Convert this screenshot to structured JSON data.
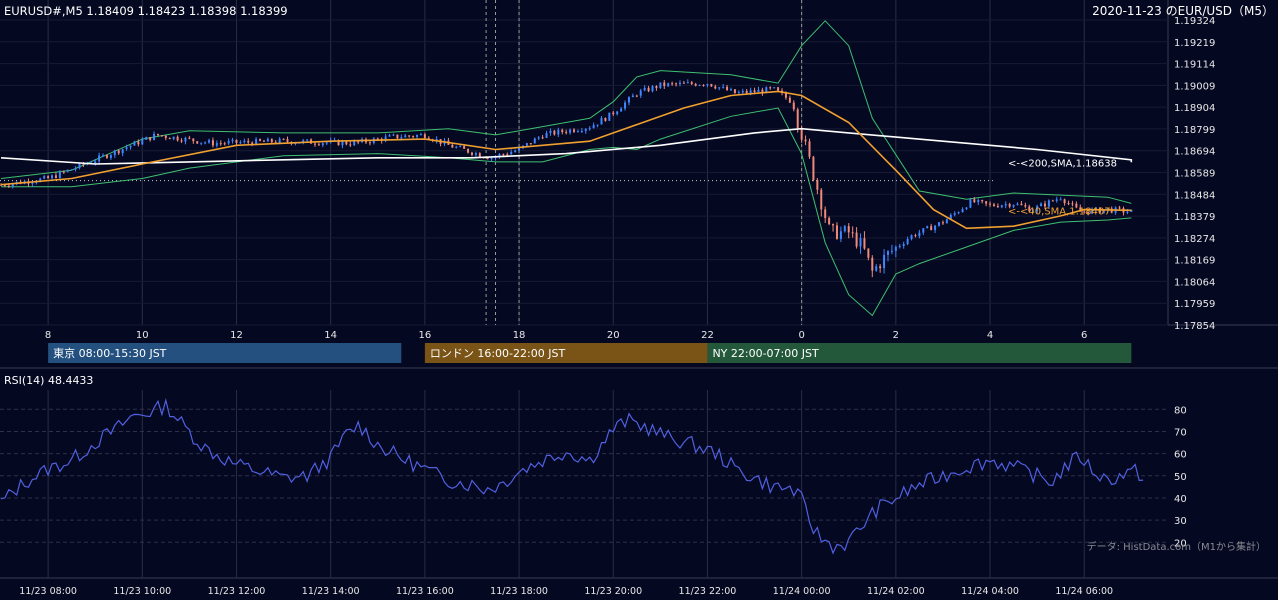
{
  "header": {
    "symbol_ohlc": "EURUSD#,M5 1.18409 1.18423 1.18398 1.18399",
    "date_title": "2020-11-23 のEUR/USD（M5）"
  },
  "chart_data": [
    {
      "type": "candlestick",
      "name": "price",
      "y_ticks": [
        "1.19324",
        "1.19219",
        "1.19114",
        "1.19009",
        "1.18904",
        "1.18799",
        "1.18694",
        "1.18589",
        "1.18484",
        "1.18379",
        "1.18274",
        "1.18169",
        "1.18064",
        "1.17959",
        "1.17854"
      ],
      "ylim": [
        1.17854,
        1.19324
      ],
      "x_ticks": [
        "8",
        "10",
        "12",
        "14",
        "16",
        "18",
        "20",
        "22",
        "0",
        "2",
        "4",
        "6"
      ],
      "x_tick_hours": [
        8,
        10,
        12,
        14,
        16,
        18,
        20,
        22,
        24,
        26,
        28,
        30
      ],
      "xlim_hours": [
        7.0,
        31.8
      ],
      "price_path": [
        [
          7.0,
          1.1853
        ],
        [
          8.0,
          1.1856
        ],
        [
          9.0,
          1.1865
        ],
        [
          10.3,
          1.1877
        ],
        [
          11.5,
          1.1873
        ],
        [
          13.0,
          1.1874
        ],
        [
          14.5,
          1.1873
        ],
        [
          15.3,
          1.1876
        ],
        [
          16.0,
          1.1877
        ],
        [
          16.5,
          1.1872
        ],
        [
          17.4,
          1.1866
        ],
        [
          18.0,
          1.187
        ],
        [
          18.5,
          1.1877
        ],
        [
          19.5,
          1.1881
        ],
        [
          19.9,
          1.1886
        ],
        [
          20.5,
          1.1897
        ],
        [
          21.0,
          1.1901
        ],
        [
          22.0,
          1.1902
        ],
        [
          22.6,
          1.1897
        ],
        [
          23.4,
          1.1899
        ],
        [
          23.8,
          1.1893
        ],
        [
          24.2,
          1.1862
        ],
        [
          24.6,
          1.183
        ],
        [
          25.0,
          1.183
        ],
        [
          25.3,
          1.1823
        ],
        [
          25.5,
          1.1811
        ],
        [
          25.8,
          1.1819
        ],
        [
          26.3,
          1.1828
        ],
        [
          27.0,
          1.1835
        ],
        [
          27.6,
          1.1845
        ],
        [
          28.0,
          1.1843
        ],
        [
          28.5,
          1.1844
        ],
        [
          28.9,
          1.1841
        ],
        [
          29.5,
          1.1847
        ],
        [
          29.9,
          1.184
        ],
        [
          30.5,
          1.1841
        ],
        [
          31.0,
          1.184
        ]
      ],
      "series": [
        {
          "name": "<-<200,SMA,1.18638",
          "color": "#ffffff",
          "points": [
            [
              7.0,
              1.1866
            ],
            [
              9.0,
              1.1863
            ],
            [
              11.0,
              1.1864
            ],
            [
              13.0,
              1.1865
            ],
            [
              15.0,
              1.1866
            ],
            [
              17.0,
              1.1866
            ],
            [
              19.0,
              1.1868
            ],
            [
              21.0,
              1.1872
            ],
            [
              23.0,
              1.1878
            ],
            [
              24.0,
              1.188
            ],
            [
              25.0,
              1.1878
            ],
            [
              27.0,
              1.1874
            ],
            [
              29.0,
              1.187
            ],
            [
              31.0,
              1.1865
            ],
            [
              31.0,
              1.18638
            ]
          ]
        },
        {
          "name": "<-<40,SMA,1.18407",
          "color": "#f0a030",
          "points": [
            [
              7.0,
              1.1853
            ],
            [
              8.5,
              1.1856
            ],
            [
              10.0,
              1.1863
            ],
            [
              12.0,
              1.1872
            ],
            [
              14.0,
              1.1874
            ],
            [
              16.0,
              1.1875
            ],
            [
              17.5,
              1.187
            ],
            [
              18.5,
              1.1872
            ],
            [
              19.5,
              1.1874
            ],
            [
              20.5,
              1.1882
            ],
            [
              21.5,
              1.189
            ],
            [
              22.5,
              1.1896
            ],
            [
              23.5,
              1.1898
            ],
            [
              24.0,
              1.1896
            ],
            [
              25.0,
              1.1883
            ],
            [
              26.0,
              1.186
            ],
            [
              26.8,
              1.1841
            ],
            [
              27.5,
              1.1832
            ],
            [
              28.5,
              1.1833
            ],
            [
              29.5,
              1.1838
            ],
            [
              30.0,
              1.1841
            ],
            [
              31.0,
              1.18407
            ]
          ]
        }
      ],
      "bands": {
        "name": "Bollinger",
        "color": "#3ec070",
        "upper": [
          [
            7.0,
            1.1856
          ],
          [
            8.5,
            1.186
          ],
          [
            10.0,
            1.1875
          ],
          [
            11.0,
            1.1879
          ],
          [
            13.0,
            1.1878
          ],
          [
            15.0,
            1.1878
          ],
          [
            16.5,
            1.188
          ],
          [
            17.5,
            1.1877
          ],
          [
            18.5,
            1.1881
          ],
          [
            19.5,
            1.1885
          ],
          [
            20.0,
            1.1893
          ],
          [
            20.5,
            1.1905
          ],
          [
            21.0,
            1.1908
          ],
          [
            22.5,
            1.1906
          ],
          [
            23.5,
            1.1902
          ],
          [
            24.0,
            1.192
          ],
          [
            24.5,
            1.1932
          ],
          [
            25.0,
            1.192
          ],
          [
            25.5,
            1.1885
          ],
          [
            26.5,
            1.185
          ],
          [
            27.5,
            1.1846
          ],
          [
            28.5,
            1.1849
          ],
          [
            29.5,
            1.1848
          ],
          [
            30.5,
            1.1847
          ],
          [
            31.0,
            1.1844
          ]
        ],
        "lower": [
          [
            7.0,
            1.1852
          ],
          [
            8.5,
            1.1852
          ],
          [
            10.0,
            1.1856
          ],
          [
            11.0,
            1.1861
          ],
          [
            13.0,
            1.1867
          ],
          [
            15.0,
            1.1868
          ],
          [
            16.5,
            1.1866
          ],
          [
            17.5,
            1.1864
          ],
          [
            18.5,
            1.1864
          ],
          [
            19.5,
            1.187
          ],
          [
            20.0,
            1.1871
          ],
          [
            20.5,
            1.187
          ],
          [
            21.0,
            1.1875
          ],
          [
            22.5,
            1.1886
          ],
          [
            23.5,
            1.189
          ],
          [
            24.0,
            1.1868
          ],
          [
            24.5,
            1.1825
          ],
          [
            25.0,
            1.18
          ],
          [
            25.5,
            1.179
          ],
          [
            26.0,
            1.181
          ],
          [
            26.5,
            1.1815
          ],
          [
            27.5,
            1.1823
          ],
          [
            28.5,
            1.1831
          ],
          [
            29.5,
            1.1835
          ],
          [
            30.5,
            1.1836
          ],
          [
            31.0,
            1.1837
          ]
        ]
      },
      "reference_line": 1.1855,
      "vertical_markers_hours": [
        17.3,
        17.5,
        18.0,
        24.0
      ]
    },
    {
      "type": "line",
      "name": "RSI",
      "title": "RSI(14) 48.4433",
      "y_ticks": [
        "80",
        "70",
        "60",
        "50",
        "40",
        "30",
        "20"
      ],
      "ylim": [
        12,
        86
      ],
      "color": "#5060e0",
      "x_ticks": [
        "11/23 08:00",
        "11/23 10:00",
        "11/23 12:00",
        "11/23 14:00",
        "11/23 16:00",
        "11/23 18:00",
        "11/23 20:00",
        "11/23 22:00",
        "11/24 00:00",
        "11/24 02:00",
        "11/24 04:00",
        "11/24 06:00"
      ],
      "points": [
        [
          7.0,
          38
        ],
        [
          7.5,
          47
        ],
        [
          8.0,
          53
        ],
        [
          8.5,
          57
        ],
        [
          9.0,
          65
        ],
        [
          9.5,
          72
        ],
        [
          9.8,
          77
        ],
        [
          10.2,
          79
        ],
        [
          10.5,
          82
        ],
        [
          10.9,
          72
        ],
        [
          11.3,
          63
        ],
        [
          11.7,
          58
        ],
        [
          12.0,
          55
        ],
        [
          12.5,
          52
        ],
        [
          13.0,
          49
        ],
        [
          13.5,
          50
        ],
        [
          14.0,
          58
        ],
        [
          14.3,
          68
        ],
        [
          14.6,
          73
        ],
        [
          15.0,
          64
        ],
        [
          15.5,
          58
        ],
        [
          16.0,
          53
        ],
        [
          16.5,
          48
        ],
        [
          17.0,
          46
        ],
        [
          17.3,
          44
        ],
        [
          17.6,
          46
        ],
        [
          18.0,
          52
        ],
        [
          18.5,
          57
        ],
        [
          19.0,
          61
        ],
        [
          19.5,
          57
        ],
        [
          20.0,
          71
        ],
        [
          20.3,
          75
        ],
        [
          20.7,
          72
        ],
        [
          21.2,
          67
        ],
        [
          21.7,
          64
        ],
        [
          22.2,
          60
        ],
        [
          22.6,
          53
        ],
        [
          23.0,
          49
        ],
        [
          23.4,
          45
        ],
        [
          23.8,
          44
        ],
        [
          24.0,
          39
        ],
        [
          24.2,
          28
        ],
        [
          24.4,
          22
        ],
        [
          24.7,
          18
        ],
        [
          25.0,
          20
        ],
        [
          25.3,
          28
        ],
        [
          25.6,
          35
        ],
        [
          26.0,
          40
        ],
        [
          26.5,
          46
        ],
        [
          27.0,
          50
        ],
        [
          27.5,
          54
        ],
        [
          28.0,
          57
        ],
        [
          28.5,
          54
        ],
        [
          29.0,
          50
        ],
        [
          29.3,
          47
        ],
        [
          29.6,
          54
        ],
        [
          29.9,
          59
        ],
        [
          30.2,
          52
        ],
        [
          30.5,
          48
        ],
        [
          30.9,
          51
        ],
        [
          31.1,
          52
        ],
        [
          31.3,
          48.4
        ]
      ]
    }
  ],
  "sessions": [
    {
      "label": "東京 08:00-15:30 JST",
      "color": "#23507f",
      "start": 8.0,
      "end": 15.5
    },
    {
      "label": "ロンドン 16:00-22:00 JST",
      "color": "#7a5416",
      "start": 16.0,
      "end": 22.0
    },
    {
      "label": "NY 22:00-07:00 JST",
      "color": "#23593a",
      "start": 22.0,
      "end": 31.0
    }
  ],
  "footer": {
    "source_note": "データ: HistData.com（M1から集計）"
  }
}
